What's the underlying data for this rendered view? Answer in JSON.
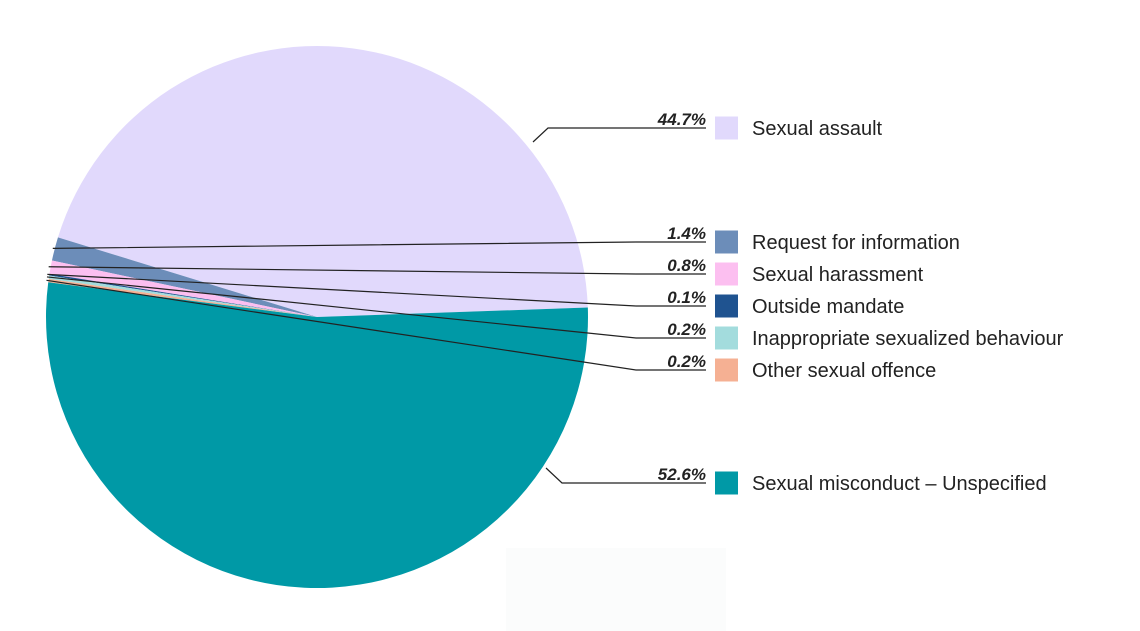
{
  "chart_data": {
    "type": "pie",
    "title": "",
    "slices": [
      {
        "label": "Sexual assault",
        "value": 44.7,
        "pct_label": "44.7%",
        "color": "#e1d9fc"
      },
      {
        "label": "Request for information",
        "value": 1.4,
        "pct_label": "1.4%",
        "color": "#6c8db9"
      },
      {
        "label": "Sexual harassment",
        "value": 0.8,
        "pct_label": "0.8%",
        "color": "#fcbff0"
      },
      {
        "label": "Outside mandate",
        "value": 0.1,
        "pct_label": "0.1%",
        "color": "#1f5390"
      },
      {
        "label": "Inappropriate sexualized behaviour",
        "value": 0.2,
        "pct_label": "0.2%",
        "color": "#a3dcdd"
      },
      {
        "label": "Other sexual offence",
        "value": 0.2,
        "pct_label": "0.2%",
        "color": "#f5b093"
      },
      {
        "label": "Sexual misconduct – Unspecified",
        "value": 52.6,
        "pct_label": "52.6%",
        "color": "#0099a6"
      }
    ],
    "legend_position": "right"
  }
}
